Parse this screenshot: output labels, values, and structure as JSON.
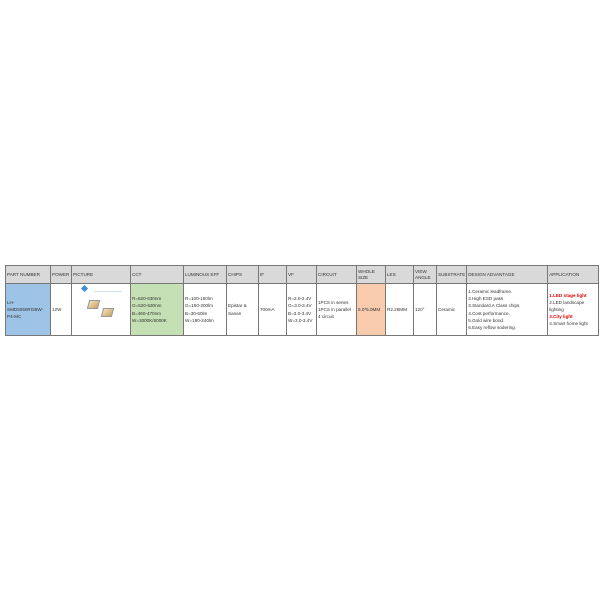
{
  "headers": [
    "PART NUMBER",
    "POWER",
    "PICTURE",
    "CCT",
    "LUMINOUS EFF",
    "CHIPS",
    "IF",
    "VF",
    "CIRCUIT",
    "WHOLE SIZE",
    "LES",
    "VIEW ANGLE",
    "SUBSTRATE",
    "DESIGN ADVANTAGE",
    "APPLICATION"
  ],
  "row": {
    "part_number": "LH-SMD5050RGBW-P4-MC",
    "power": "12W",
    "picture_icon": "led-chip-image",
    "cct": [
      "R=620-630nm",
      "G=520-530nm",
      "B=460-470nm",
      "W=3000K/6000K"
    ],
    "luminous_eff": [
      "R=100-150lm",
      "G=150-200lm",
      "B=30-60lm",
      "W=180-240lm"
    ],
    "chips": "Epistar & Sanan",
    "if": "700mA",
    "vf": [
      "R=2.0-2.4V",
      "G=3.0-3.4V",
      "B=3.0-3.4V",
      "W=3.0-3.4V"
    ],
    "circuit": [
      "1PCS in series",
      "1PCS in parallel",
      "4 circuit"
    ],
    "whole_size": "5.0*5.0MM",
    "les": "R2.26MM",
    "view_angle": "120°",
    "substrate": "Ceramic",
    "design_advantage": [
      "1.Ceramic leadframe.",
      "2.High ESD pass",
      "3.Standard A Class chips.",
      "4.Cost performance.",
      "5.Gold wire bond.",
      "6.Easy reflow sodering."
    ],
    "application": [
      "1.LED stage light",
      "2.LED landscape lighting",
      "3.City light",
      "4.Smart home light"
    ]
  },
  "colors": {
    "part_number_bg": "#9dc3e6",
    "cct_bg": "#c5e0b4",
    "whole_size_bg": "#f8cbad",
    "highlight_text": "#e00000",
    "header_bg": "#d9d9d9"
  }
}
